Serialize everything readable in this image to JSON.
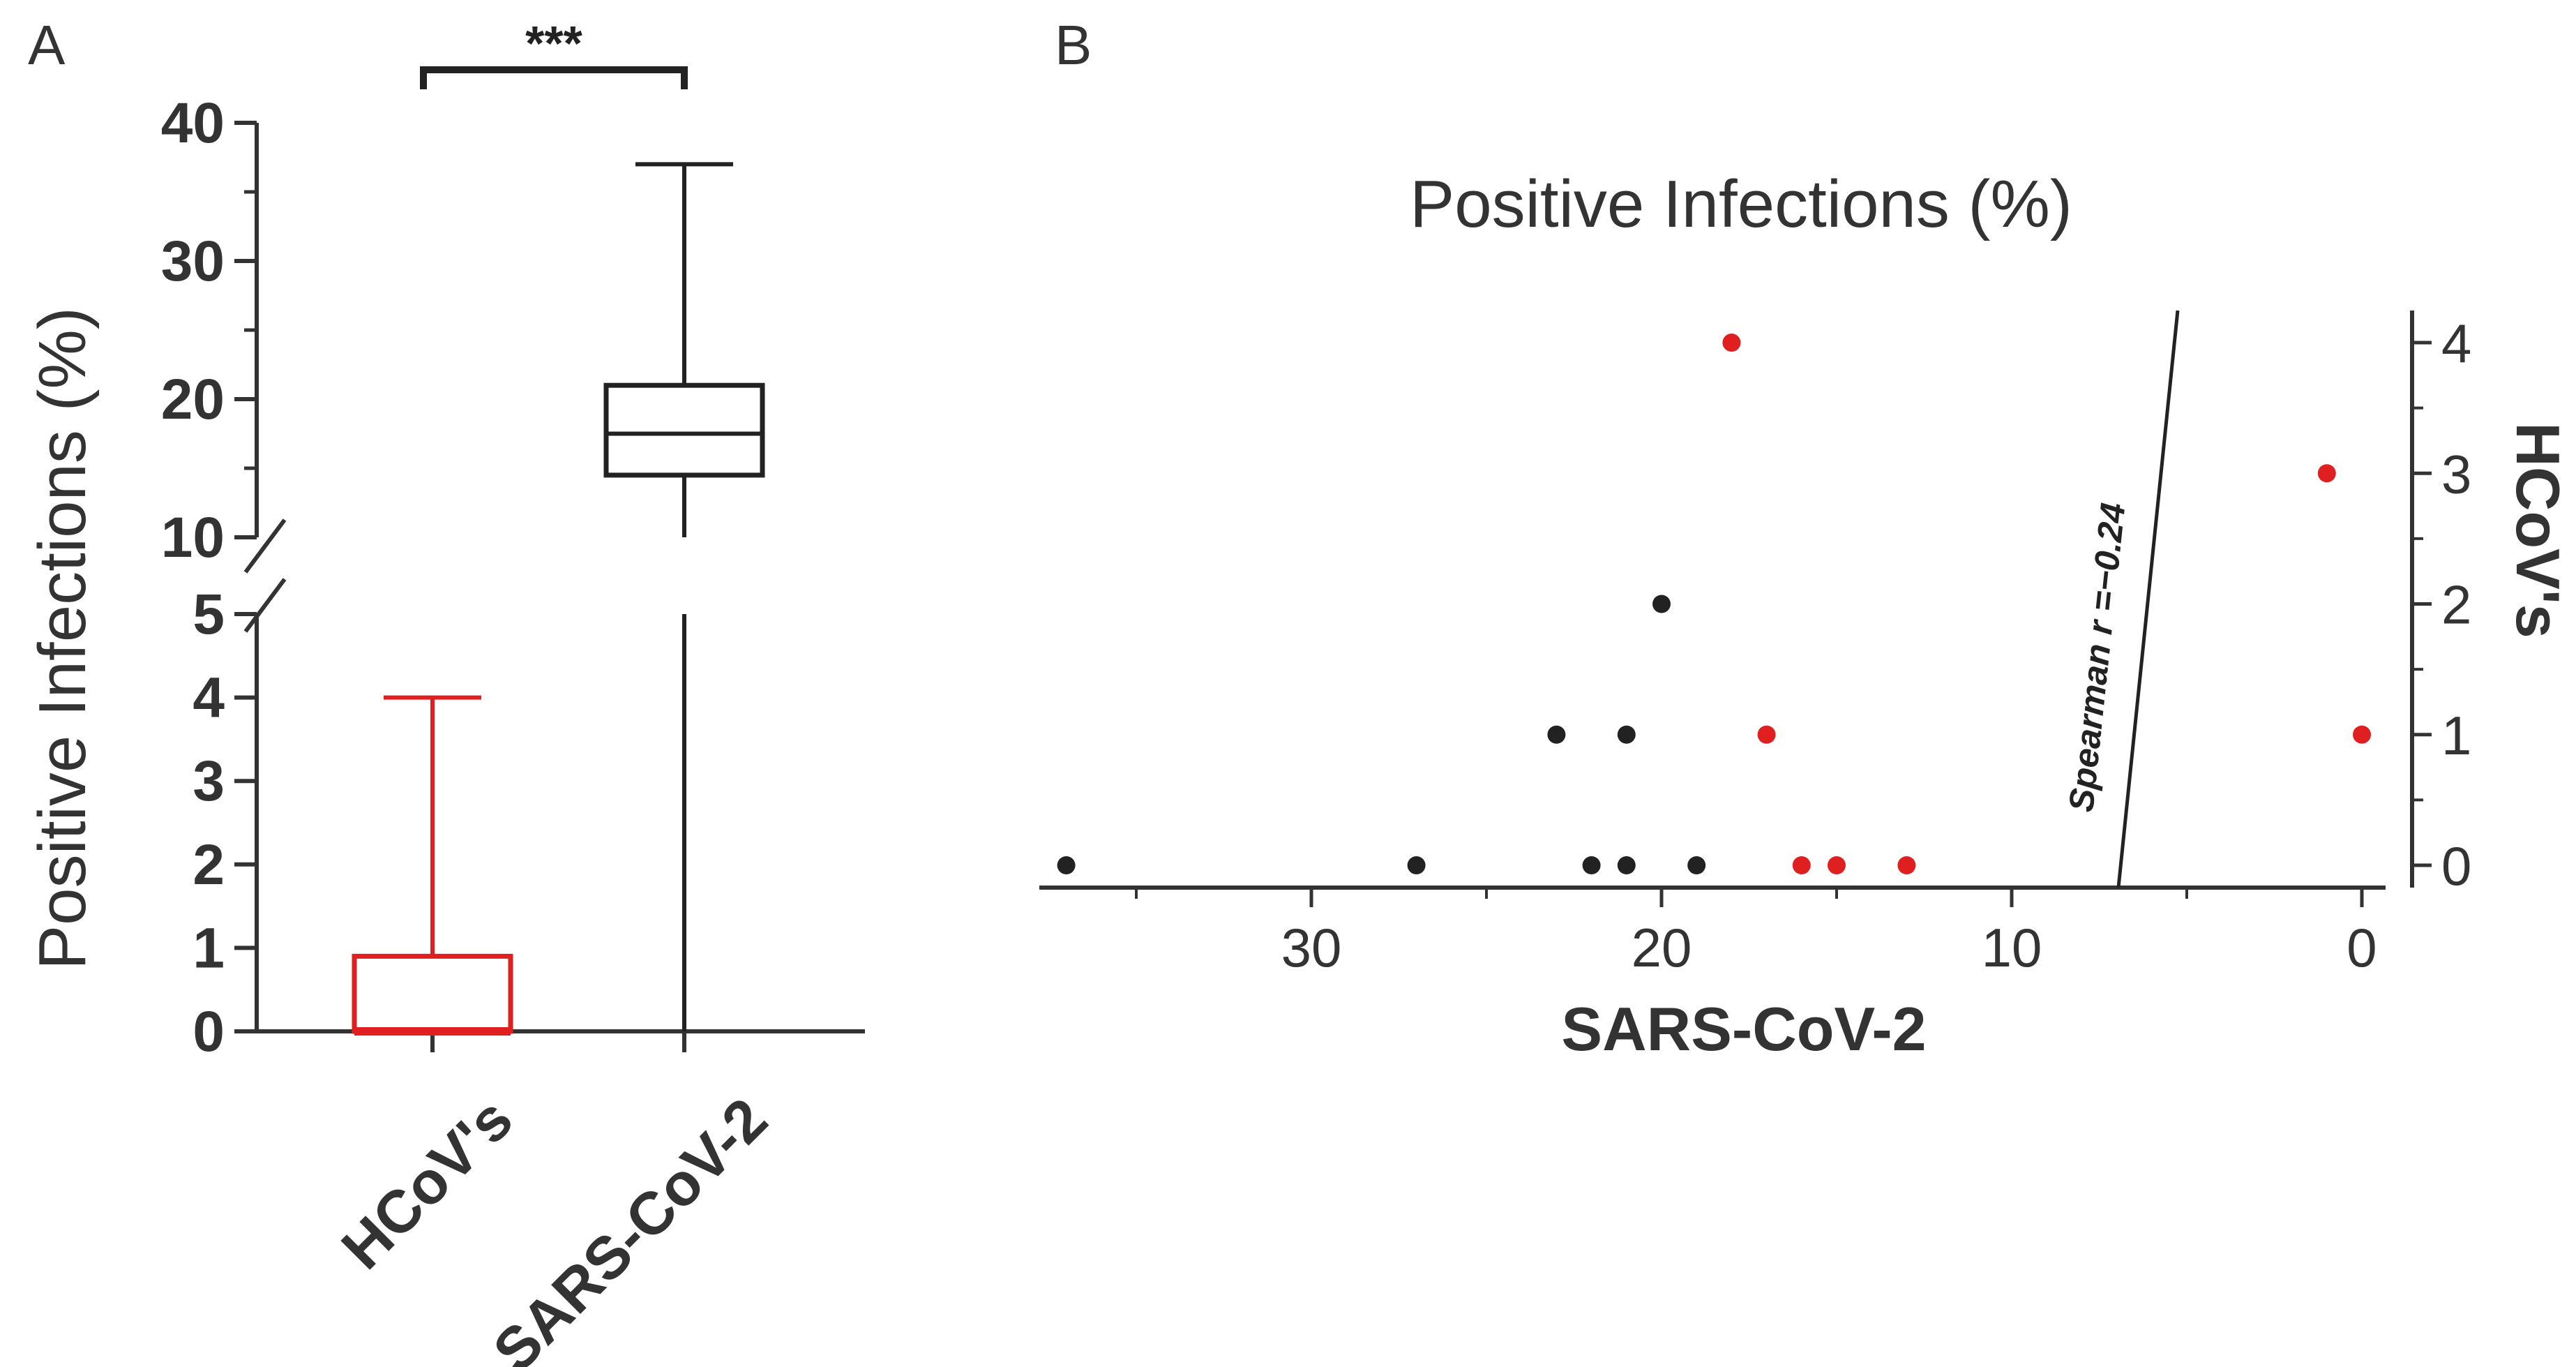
{
  "colors": {
    "hcov": "#e02020",
    "sars": "#222222",
    "axis": "#333333"
  },
  "panels": {
    "a_label": "A",
    "b_label": "B"
  },
  "chart_data": [
    {
      "type": "box",
      "title": "",
      "ylabel": "Positive Infections (%)",
      "ylim": [
        0,
        40
      ],
      "y_break": [
        5,
        10
      ],
      "y_ticks_lower": [
        "0",
        "1",
        "2",
        "3",
        "4",
        "5"
      ],
      "y_ticks_upper": [
        "10",
        "20",
        "30",
        "40"
      ],
      "categories": [
        "HCoV's",
        "SARS-CoV-2"
      ],
      "boxes": [
        {
          "name": "HCoV's",
          "min": 0,
          "q1": 0,
          "median": 0,
          "q3": 0.9,
          "max": 4,
          "color": "#e02020"
        },
        {
          "name": "SARS-CoV-2",
          "min": 0,
          "q1": 14.5,
          "median": 17.5,
          "q3": 21,
          "max": 37,
          "color": "#222222"
        }
      ],
      "significance": "***"
    },
    {
      "type": "scatter",
      "title": "Positive Infections (%)",
      "xlabel": "SARS-CoV-2",
      "ylabel": "HCoV's",
      "xlim": [
        37.5,
        -1.5
      ],
      "ylim": [
        -0.2,
        4.1
      ],
      "x_ticks": [
        "30",
        "20",
        "10",
        "0"
      ],
      "y_ticks": [
        "0",
        "1",
        "2",
        "3",
        "4"
      ],
      "annotation": "Spearman r =−0.24",
      "series": [
        {
          "name": "black",
          "color": "#222222",
          "points": [
            [
              37,
              0
            ],
            [
              27,
              0
            ],
            [
              22,
              0
            ],
            [
              21,
              0
            ],
            [
              19,
              0
            ],
            [
              23,
              1
            ],
            [
              21,
              1
            ],
            [
              20,
              2
            ]
          ]
        },
        {
          "name": "red",
          "color": "#e02020",
          "points": [
            [
              16,
              0
            ],
            [
              15,
              0
            ],
            [
              13,
              0
            ],
            [
              17,
              1
            ],
            [
              1,
              3
            ],
            [
              0,
              1
            ],
            [
              18,
              4
            ]
          ]
        }
      ]
    }
  ]
}
